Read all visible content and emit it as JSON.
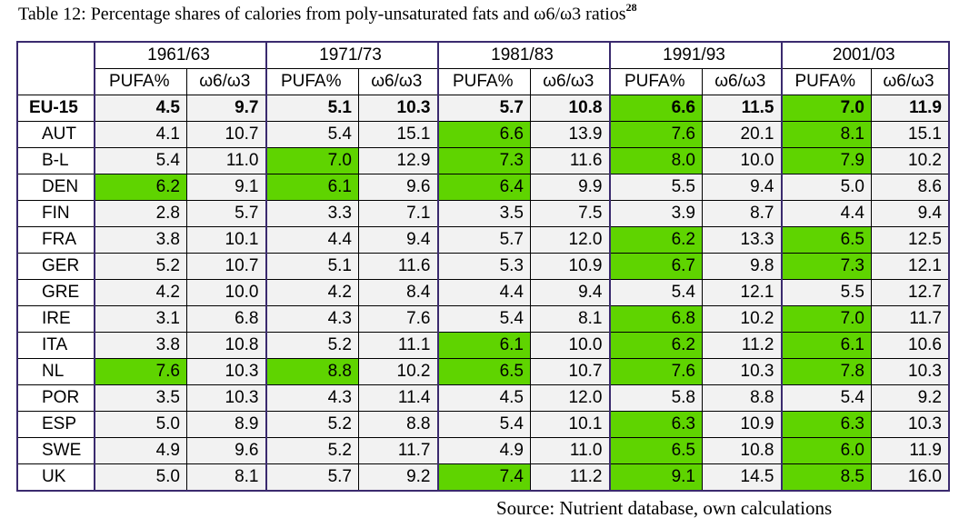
{
  "caption": {
    "text": "Table 12: Percentage shares of calories from poly-unsaturated fats and ω6/ω3 ratios",
    "footnote": "28"
  },
  "table": {
    "periods": [
      "1961/63",
      "1971/73",
      "1981/83",
      "1991/93",
      "2001/03"
    ],
    "subheaders": [
      "PUFA%",
      "ω6/ω3"
    ],
    "rows": [
      {
        "label": "EU-15",
        "cells": [
          "4.5",
          "9.7",
          "5.1",
          "10.3",
          "5.7",
          "10.8",
          "6.6",
          "11.5",
          "7.0",
          "11.9"
        ],
        "highlight": [
          false,
          false,
          false,
          false,
          false,
          false,
          true,
          false,
          true,
          false
        ]
      },
      {
        "label": "AUT",
        "cells": [
          "4.1",
          "10.7",
          "5.4",
          "15.1",
          "6.6",
          "13.9",
          "7.6",
          "20.1",
          "8.1",
          "15.1"
        ],
        "highlight": [
          false,
          false,
          false,
          false,
          true,
          false,
          true,
          false,
          true,
          false
        ]
      },
      {
        "label": "B-L",
        "cells": [
          "5.4",
          "11.0",
          "7.0",
          "12.9",
          "7.3",
          "11.6",
          "8.0",
          "10.0",
          "7.9",
          "10.2"
        ],
        "highlight": [
          false,
          false,
          true,
          false,
          true,
          false,
          true,
          false,
          true,
          false
        ]
      },
      {
        "label": "DEN",
        "cells": [
          "6.2",
          "9.1",
          "6.1",
          "9.6",
          "6.4",
          "9.9",
          "5.5",
          "9.4",
          "5.0",
          "8.6"
        ],
        "highlight": [
          true,
          false,
          true,
          false,
          true,
          false,
          false,
          false,
          false,
          false
        ]
      },
      {
        "label": "FIN",
        "cells": [
          "2.8",
          "5.7",
          "3.3",
          "7.1",
          "3.5",
          "7.5",
          "3.9",
          "8.7",
          "4.4",
          "9.4"
        ],
        "highlight": [
          false,
          false,
          false,
          false,
          false,
          false,
          false,
          false,
          false,
          false
        ]
      },
      {
        "label": "FRA",
        "cells": [
          "3.8",
          "10.1",
          "4.4",
          "9.4",
          "5.7",
          "12.0",
          "6.2",
          "13.3",
          "6.5",
          "12.5"
        ],
        "highlight": [
          false,
          false,
          false,
          false,
          false,
          false,
          true,
          false,
          true,
          false
        ]
      },
      {
        "label": "GER",
        "cells": [
          "5.2",
          "10.7",
          "5.1",
          "11.6",
          "5.3",
          "10.9",
          "6.7",
          "9.8",
          "7.3",
          "12.1"
        ],
        "highlight": [
          false,
          false,
          false,
          false,
          false,
          false,
          true,
          false,
          true,
          false
        ]
      },
      {
        "label": "GRE",
        "cells": [
          "4.2",
          "10.0",
          "4.2",
          "8.4",
          "4.4",
          "9.4",
          "5.4",
          "12.1",
          "5.5",
          "12.7"
        ],
        "highlight": [
          false,
          false,
          false,
          false,
          false,
          false,
          false,
          false,
          false,
          false
        ]
      },
      {
        "label": "IRE",
        "cells": [
          "3.1",
          "6.8",
          "4.3",
          "7.6",
          "5.4",
          "8.1",
          "6.8",
          "10.2",
          "7.0",
          "11.7"
        ],
        "highlight": [
          false,
          false,
          false,
          false,
          false,
          false,
          true,
          false,
          true,
          false
        ]
      },
      {
        "label": "ITA",
        "cells": [
          "3.8",
          "10.8",
          "5.2",
          "11.1",
          "6.1",
          "10.0",
          "6.2",
          "11.2",
          "6.1",
          "10.6"
        ],
        "highlight": [
          false,
          false,
          false,
          false,
          true,
          false,
          true,
          false,
          true,
          false
        ]
      },
      {
        "label": "NL",
        "cells": [
          "7.6",
          "10.3",
          "8.8",
          "10.2",
          "6.5",
          "10.7",
          "7.6",
          "10.3",
          "7.8",
          "10.3"
        ],
        "highlight": [
          true,
          false,
          true,
          false,
          true,
          false,
          true,
          false,
          true,
          false
        ]
      },
      {
        "label": "POR",
        "cells": [
          "3.5",
          "10.3",
          "4.3",
          "11.4",
          "4.5",
          "12.0",
          "5.8",
          "8.8",
          "5.4",
          "9.2"
        ],
        "highlight": [
          false,
          false,
          false,
          false,
          false,
          false,
          false,
          false,
          false,
          false
        ]
      },
      {
        "label": "ESP",
        "cells": [
          "5.0",
          "8.9",
          "5.2",
          "8.8",
          "5.4",
          "10.1",
          "6.3",
          "10.9",
          "6.3",
          "10.3"
        ],
        "highlight": [
          false,
          false,
          false,
          false,
          false,
          false,
          true,
          false,
          true,
          false
        ]
      },
      {
        "label": "SWE",
        "cells": [
          "4.9",
          "9.6",
          "5.2",
          "11.7",
          "4.9",
          "11.0",
          "6.5",
          "10.8",
          "6.0",
          "11.9"
        ],
        "highlight": [
          false,
          false,
          false,
          false,
          false,
          false,
          true,
          false,
          true,
          false
        ]
      },
      {
        "label": "UK",
        "cells": [
          "5.0",
          "8.1",
          "5.7",
          "9.2",
          "7.4",
          "11.2",
          "9.1",
          "14.5",
          "8.5",
          "16.0"
        ],
        "highlight": [
          false,
          false,
          false,
          false,
          true,
          false,
          true,
          false,
          true,
          false
        ]
      }
    ]
  },
  "source": "Source: Nutrient database, own calculations",
  "colors": {
    "highlight": "#5fd400",
    "cell_bg": "#f2f2f2",
    "group_border": "#3a2a6e"
  }
}
